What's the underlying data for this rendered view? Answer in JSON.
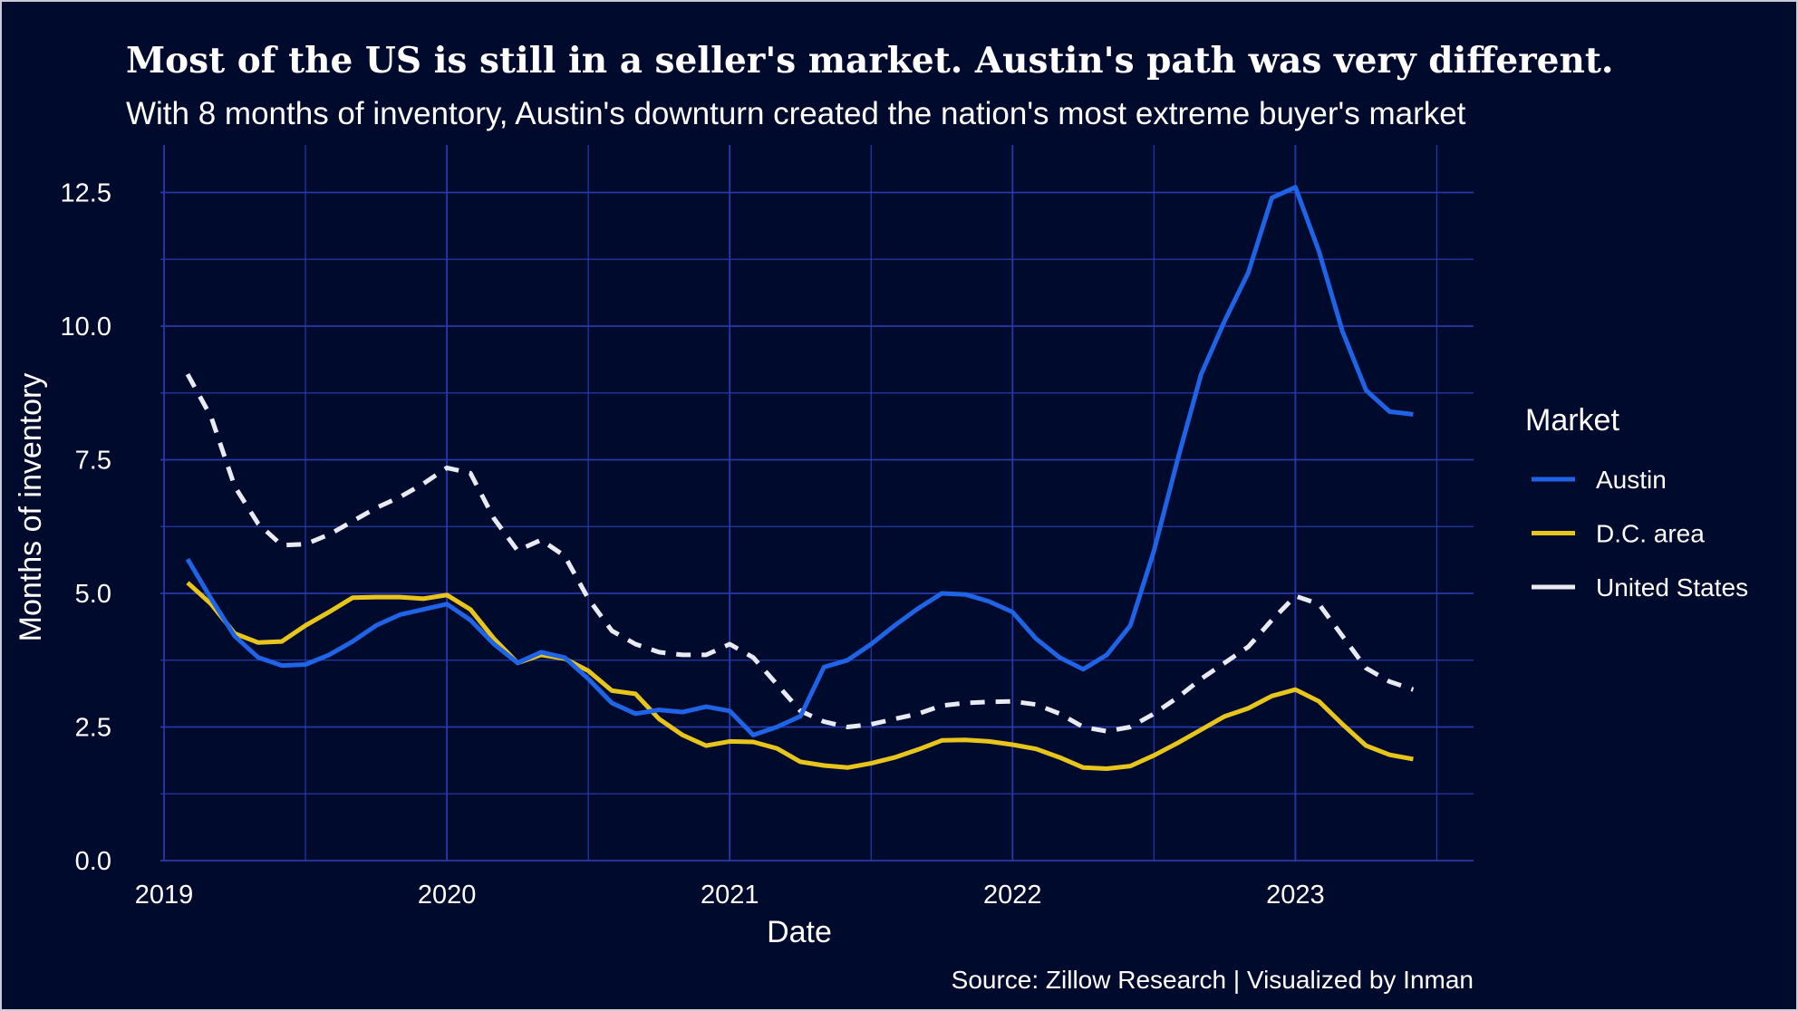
{
  "title": "Most of the US is still in a seller's market. Austin's path was very different.",
  "subtitle": "With 8 months of inventory, Austin's downturn created the nation's most extreme buyer's market",
  "source": "Source: Zillow Research | Visualized by Inman",
  "colors": {
    "background": "#000a2c",
    "grid": "#2639a8",
    "austin": "#1f64e6",
    "dc": "#e8c51c",
    "us": "#e9ebf2"
  },
  "chart_data": {
    "type": "line",
    "xlabel": "Date",
    "ylabel": "Months of inventory",
    "xlim": [
      "2018-12",
      "2023-08"
    ],
    "ylim": [
      0,
      12.5
    ],
    "x_ticks": [
      "2019",
      "2020",
      "2021",
      "2022",
      "2023"
    ],
    "y_ticks": [
      "0.0",
      "2.5",
      "5.0",
      "7.5",
      "10.0",
      "12.5"
    ],
    "grid": true,
    "legend": {
      "title": "Market",
      "position": "right"
    },
    "x": [
      "2019-02",
      "2019-03",
      "2019-04",
      "2019-05",
      "2019-06",
      "2019-07",
      "2019-08",
      "2019-09",
      "2019-10",
      "2019-11",
      "2019-12",
      "2020-01",
      "2020-02",
      "2020-03",
      "2020-04",
      "2020-05",
      "2020-06",
      "2020-07",
      "2020-08",
      "2020-09",
      "2020-10",
      "2020-11",
      "2020-12",
      "2021-01",
      "2021-02",
      "2021-03",
      "2021-04",
      "2021-05",
      "2021-06",
      "2021-07",
      "2021-08",
      "2021-09",
      "2021-10",
      "2021-11",
      "2021-12",
      "2022-01",
      "2022-02",
      "2022-03",
      "2022-04",
      "2022-05",
      "2022-06",
      "2022-07",
      "2022-08",
      "2022-09",
      "2022-10",
      "2022-11",
      "2022-12",
      "2023-01",
      "2023-02",
      "2023-03",
      "2023-04",
      "2023-05",
      "2023-06"
    ],
    "series": [
      {
        "name": "Austin",
        "color": "#1f64e6",
        "dash": "solid",
        "values": [
          5.64,
          4.9,
          4.2,
          3.8,
          3.65,
          3.67,
          3.85,
          4.1,
          4.4,
          4.6,
          4.7,
          4.8,
          4.5,
          4.05,
          3.7,
          3.9,
          3.8,
          3.4,
          2.95,
          2.75,
          2.82,
          2.78,
          2.88,
          2.8,
          2.35,
          2.5,
          2.7,
          3.62,
          3.75,
          4.05,
          4.4,
          4.72,
          5.0,
          4.98,
          4.85,
          4.65,
          4.15,
          3.8,
          3.58,
          3.85,
          4.4,
          5.8,
          7.5,
          9.1,
          10.1,
          11.0,
          12.4,
          12.6,
          11.4,
          9.9,
          8.8,
          8.4,
          8.35
        ]
      },
      {
        "name": "D.C. area",
        "color": "#e8c51c",
        "dash": "solid",
        "values": [
          5.2,
          4.8,
          4.25,
          4.08,
          4.1,
          4.4,
          4.65,
          4.92,
          4.93,
          4.93,
          4.9,
          4.97,
          4.7,
          4.15,
          3.7,
          3.85,
          3.78,
          3.55,
          3.18,
          3.12,
          2.65,
          2.35,
          2.15,
          2.23,
          2.22,
          2.1,
          1.85,
          1.78,
          1.74,
          1.82,
          1.93,
          2.08,
          2.25,
          2.26,
          2.23,
          2.17,
          2.09,
          1.93,
          1.74,
          1.72,
          1.77,
          1.97,
          2.2,
          2.45,
          2.7,
          2.85,
          3.08,
          3.2,
          2.98,
          2.55,
          2.15,
          1.98,
          1.9
        ]
      },
      {
        "name": "United States",
        "color": "#e9ebf2",
        "dash": "dashed",
        "values": [
          9.1,
          8.3,
          7.0,
          6.3,
          5.9,
          5.92,
          6.1,
          6.35,
          6.6,
          6.8,
          7.05,
          7.35,
          7.25,
          6.4,
          5.8,
          6.0,
          5.7,
          4.9,
          4.3,
          4.05,
          3.9,
          3.85,
          3.85,
          4.05,
          3.8,
          3.3,
          2.8,
          2.6,
          2.5,
          2.55,
          2.65,
          2.75,
          2.9,
          2.95,
          2.97,
          2.98,
          2.92,
          2.75,
          2.5,
          2.42,
          2.5,
          2.75,
          3.05,
          3.4,
          3.7,
          4.0,
          4.5,
          4.95,
          4.8,
          4.2,
          3.6,
          3.35,
          3.2
        ]
      }
    ]
  }
}
